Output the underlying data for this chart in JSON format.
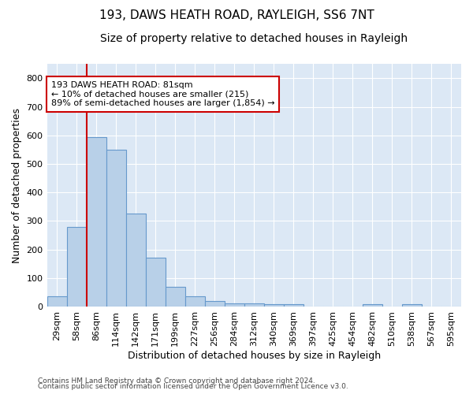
{
  "title": "193, DAWS HEATH ROAD, RAYLEIGH, SS6 7NT",
  "subtitle": "Size of property relative to detached houses in Rayleigh",
  "xlabel": "Distribution of detached houses by size in Rayleigh",
  "ylabel": "Number of detached properties",
  "footer_line1": "Contains HM Land Registry data © Crown copyright and database right 2024.",
  "footer_line2": "Contains public sector information licensed under the Open Government Licence v3.0.",
  "categories": [
    "29sqm",
    "58sqm",
    "86sqm",
    "114sqm",
    "142sqm",
    "171sqm",
    "199sqm",
    "227sqm",
    "256sqm",
    "284sqm",
    "312sqm",
    "340sqm",
    "369sqm",
    "397sqm",
    "425sqm",
    "454sqm",
    "482sqm",
    "510sqm",
    "538sqm",
    "567sqm",
    "595sqm"
  ],
  "values": [
    35,
    280,
    595,
    550,
    325,
    170,
    68,
    35,
    20,
    12,
    12,
    8,
    8,
    0,
    0,
    0,
    8,
    0,
    8,
    0,
    0
  ],
  "bar_color": "#b8d0e8",
  "bar_edge_color": "#6699cc",
  "vline_color": "#cc0000",
  "vline_pos": 1.5,
  "ylim": [
    0,
    850
  ],
  "yticks": [
    0,
    100,
    200,
    300,
    400,
    500,
    600,
    700,
    800
  ],
  "annotation_text": "193 DAWS HEATH ROAD: 81sqm\n← 10% of detached houses are smaller (215)\n89% of semi-detached houses are larger (1,854) →",
  "annotation_box_color": "#cc0000",
  "bg_color": "#dce8f5",
  "grid_color": "#ffffff",
  "title_fontsize": 11,
  "subtitle_fontsize": 10,
  "tick_fontsize": 8,
  "ylabel_fontsize": 9,
  "xlabel_fontsize": 9,
  "footer_fontsize": 6.5,
  "annotation_fontsize": 8
}
